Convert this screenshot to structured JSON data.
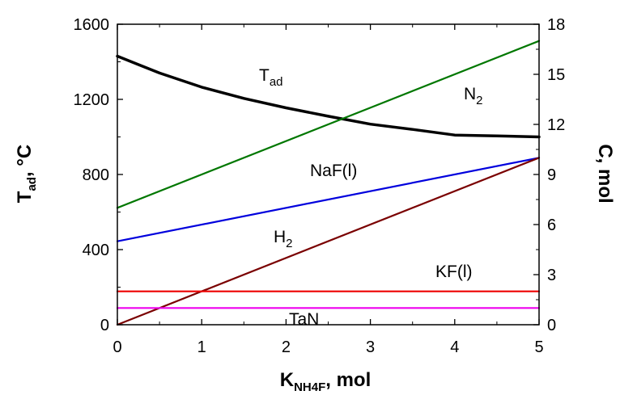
{
  "chart_data": {
    "type": "line",
    "xlabel": {
      "main": "K",
      "sub": "NH4F",
      "unit": ", mol"
    },
    "ylabel_left": {
      "main": "T",
      "sub": "ad",
      "unit": ",  °C"
    },
    "ylabel_right": "C, mol",
    "xlim": [
      0,
      5
    ],
    "ylim_left": [
      0,
      1600
    ],
    "ylim_right": [
      0,
      18
    ],
    "x_ticks": [
      "0",
      "1",
      "2",
      "3",
      "4",
      "5"
    ],
    "y_left_ticks": [
      "0",
      "400",
      "800",
      "1200",
      "1600"
    ],
    "y_right_ticks": [
      "0",
      "3",
      "6",
      "9",
      "12",
      "15",
      "18"
    ],
    "grid": false,
    "series": [
      {
        "name": "T_ad",
        "label_main": "T",
        "label_sub": "ad",
        "axis": "left",
        "color": "#000000",
        "x": [
          0,
          0.25,
          0.5,
          1,
          1.5,
          2,
          2.5,
          3,
          3.5,
          4,
          4.5,
          5
        ],
        "y": [
          1430,
          1385,
          1340,
          1265,
          1205,
          1155,
          1110,
          1068,
          1040,
          1010,
          1005,
          1000
        ]
      },
      {
        "name": "N2",
        "label_main": "N",
        "label_sub": "2",
        "axis": "right",
        "color": "#007700",
        "x": [
          0,
          5
        ],
        "y": [
          7.0,
          17.0
        ]
      },
      {
        "name": "NaF(l)",
        "label_main": "NaF(l)",
        "label_sub": "",
        "axis": "right",
        "color": "#0000dd",
        "x": [
          0,
          5
        ],
        "y": [
          5.0,
          10.0
        ]
      },
      {
        "name": "H2",
        "label_main": "H",
        "label_sub": "2",
        "axis": "right",
        "color": "#7a0000",
        "x": [
          0,
          5
        ],
        "y": [
          0.0,
          10.0
        ]
      },
      {
        "name": "KF(l)",
        "label_main": "KF(l)",
        "label_sub": "",
        "axis": "right",
        "color": "#ee0000",
        "x": [
          0,
          5
        ],
        "y": [
          2.0,
          2.0
        ]
      },
      {
        "name": "TaN",
        "label_main": "TaN",
        "label_sub": "",
        "axis": "right",
        "color": "#ee00ee",
        "x": [
          0,
          5
        ],
        "y": [
          1.0,
          1.0
        ]
      }
    ]
  }
}
